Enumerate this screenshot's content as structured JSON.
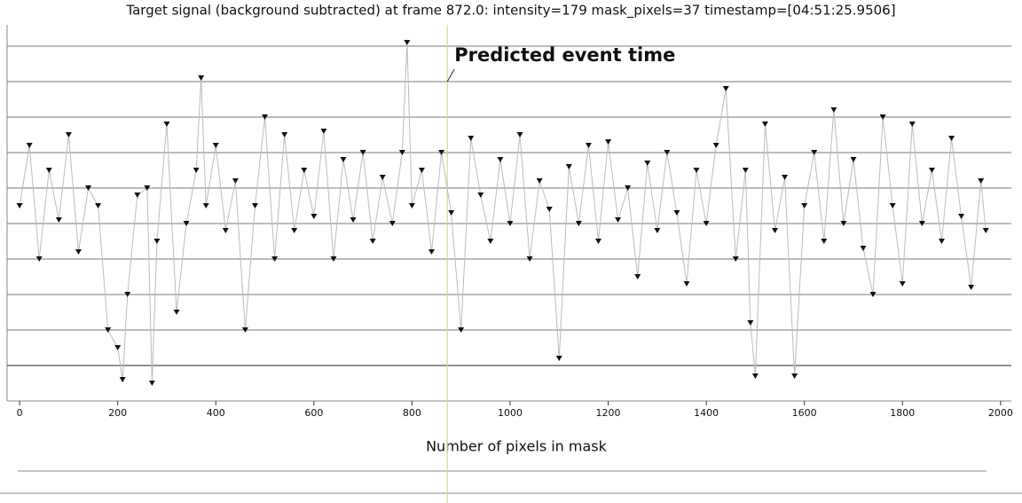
{
  "chart_data": {
    "type": "line",
    "title": "Target signal (background subtracted) at frame 872.0: intensity=179 mask_pixels=37 timestamp=[04:51:25.9506]",
    "annotation": "Predicted event time",
    "event_x": 872,
    "lower_title": "Number of pixels in mask",
    "x": [
      0,
      20,
      40,
      60,
      80,
      100,
      120,
      140,
      160,
      180,
      200,
      210,
      220,
      240,
      260,
      270,
      280,
      300,
      320,
      340,
      360,
      370,
      380,
      400,
      420,
      440,
      460,
      480,
      500,
      520,
      540,
      560,
      580,
      600,
      620,
      640,
      660,
      680,
      700,
      720,
      740,
      760,
      780,
      790,
      800,
      820,
      840,
      860,
      880,
      900,
      920,
      940,
      960,
      980,
      1000,
      1020,
      1040,
      1060,
      1080,
      1100,
      1120,
      1140,
      1160,
      1180,
      1200,
      1220,
      1240,
      1260,
      1280,
      1300,
      1320,
      1340,
      1360,
      1380,
      1400,
      1420,
      1440,
      1460,
      1480,
      1490,
      1500,
      1520,
      1540,
      1560,
      1580,
      1600,
      1620,
      1640,
      1660,
      1680,
      1700,
      1720,
      1740,
      1760,
      1780,
      1800,
      1820,
      1840,
      1860,
      1880,
      1900,
      1920,
      1940,
      1960,
      1970
    ],
    "series": [
      {
        "name": "intensity",
        "color": "#111111",
        "line_color": "#bbbbbb",
        "values": [
          4.5,
          6.2,
          3.0,
          5.5,
          4.1,
          6.5,
          3.2,
          5.0,
          4.5,
          1.0,
          0.5,
          -0.4,
          2.0,
          4.8,
          5.0,
          -0.5,
          3.5,
          6.8,
          1.5,
          4.0,
          5.5,
          8.1,
          4.5,
          6.2,
          3.8,
          5.2,
          1.0,
          4.5,
          7.0,
          3.0,
          6.5,
          3.8,
          5.5,
          4.2,
          6.6,
          3.0,
          5.8,
          4.1,
          6.0,
          3.5,
          5.3,
          4.0,
          6.0,
          9.1,
          4.5,
          5.5,
          3.2,
          6.0,
          4.3,
          1.0,
          6.4,
          4.8,
          3.5,
          5.8,
          4.0,
          6.5,
          3.0,
          5.2,
          4.4,
          0.2,
          5.6,
          4.0,
          6.2,
          3.5,
          6.3,
          4.1,
          5.0,
          2.5,
          5.7,
          3.8,
          6.0,
          4.3,
          2.3,
          5.5,
          4.0,
          6.2,
          7.8,
          3.0,
          5.5,
          1.2,
          -0.3,
          6.8,
          3.8,
          5.3,
          -0.3,
          4.5,
          6.0,
          3.5,
          7.2,
          4.0,
          5.8,
          3.3,
          2.0,
          7.0,
          4.5,
          2.3,
          6.8,
          4.0,
          5.5,
          3.5,
          6.4,
          4.2,
          2.2,
          5.2,
          3.8
        ]
      }
    ],
    "xlim": [
      -40,
      2060
    ],
    "xticks": [
      0,
      200,
      400,
      600,
      800,
      1000,
      1200,
      1400,
      1600,
      1800,
      2000
    ],
    "ylim": [
      -1,
      9.5
    ],
    "y_grid": [
      0,
      1,
      2,
      3,
      4,
      5,
      6,
      7,
      8,
      9
    ],
    "grid": true
  }
}
